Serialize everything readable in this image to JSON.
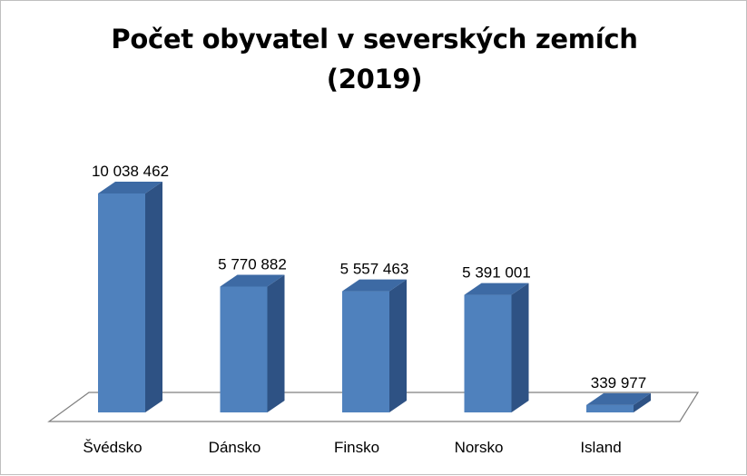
{
  "chart_data": {
    "type": "bar",
    "title": "Počet obyvatel v severských zemích",
    "subtitle": "(2019)",
    "categories": [
      "Švédsko",
      "Dánsko",
      "Finsko",
      "Norsko",
      "Island"
    ],
    "values": [
      10038462,
      5770882,
      5557463,
      5391001,
      339977
    ],
    "data_labels": [
      "10 038 462",
      "5 770 882",
      "5 557 463",
      "5 391 001",
      "339 977"
    ],
    "xlabel": "",
    "ylabel": "",
    "ylim": [
      0,
      11000000
    ],
    "grid": false,
    "legend": "none",
    "style": "3d-column",
    "colors": {
      "bar_front": "#4f81bd",
      "bar_top": "#3d6aa4",
      "bar_side": "#2e5284",
      "floor_stroke": "#7f7f7f"
    }
  }
}
